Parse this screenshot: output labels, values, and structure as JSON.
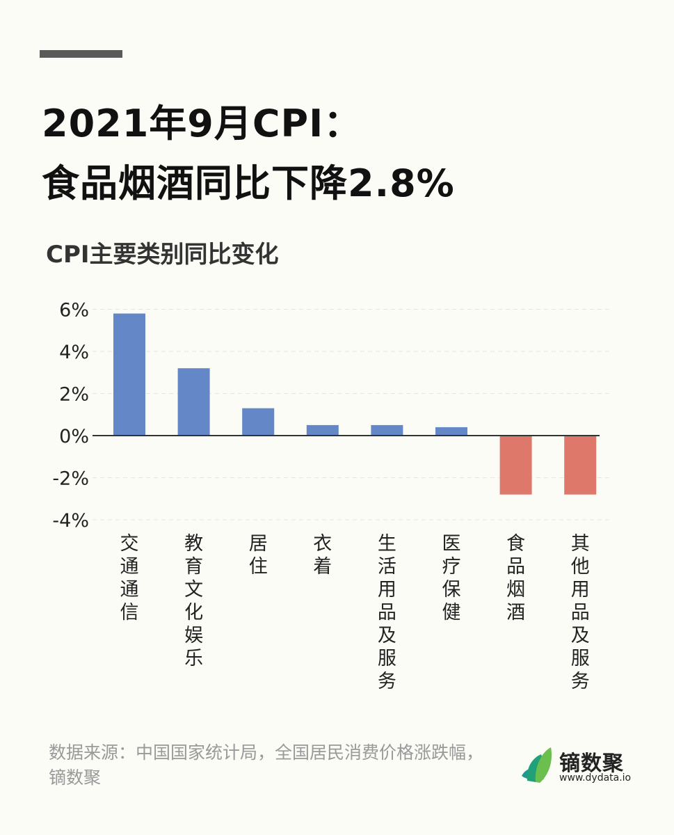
{
  "title_line1": "2021年9月CPI：",
  "title_line2": "食品烟酒同比下降2.8%",
  "source": "数据来源：中国国家统计局，全国居民消费价格涨跌幅，镝数聚",
  "logo": {
    "name": "镝数聚",
    "url": "www.dydata.io"
  },
  "chart_data": {
    "type": "bar",
    "title": "CPI主要类别同比变化",
    "categories": [
      "交通通信",
      "教育文化娱乐",
      "居住",
      "衣着",
      "生活用品及服务",
      "医疗保健",
      "食品烟酒",
      "其他用品及服务"
    ],
    "values": [
      5.8,
      3.2,
      1.3,
      0.5,
      0.5,
      0.4,
      -2.8,
      -2.8
    ],
    "unit": "%",
    "ylim": [
      -4,
      6
    ],
    "yticks": [
      "6%",
      "4%",
      "2%",
      "0%",
      "-2%",
      "-4%"
    ],
    "ytick_values": [
      6,
      4,
      2,
      0,
      -2,
      -4
    ],
    "grid": true,
    "colors": {
      "positive": "#6487c7",
      "negative": "#dd786a"
    }
  }
}
